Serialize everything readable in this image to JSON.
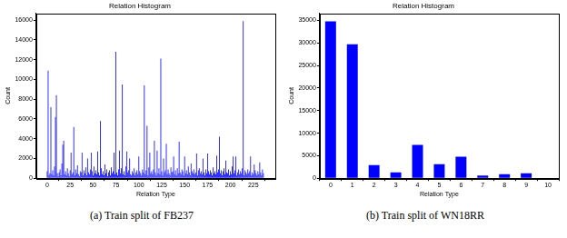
{
  "chart_data": [
    {
      "type": "bar",
      "title": "Relation Histogram",
      "caption": "(a)  Train split of FB237",
      "x_label": "Relation Type",
      "y_label": "Count",
      "color": "#0000ff",
      "grid": false,
      "x": [
        0,
        1,
        2,
        3,
        4,
        5,
        6,
        7,
        8,
        9,
        10,
        11,
        12,
        13,
        14,
        15,
        16,
        17,
        18,
        19,
        20,
        21,
        22,
        23,
        24,
        25,
        26,
        27,
        28,
        29,
        30,
        31,
        32,
        33,
        34,
        35,
        36,
        37,
        38,
        39,
        40,
        41,
        42,
        43,
        44,
        45,
        46,
        47,
        48,
        49,
        50,
        51,
        52,
        53,
        54,
        55,
        56,
        57,
        58,
        59,
        60,
        61,
        62,
        63,
        64,
        65,
        66,
        67,
        68,
        69,
        70,
        71,
        72,
        73,
        74,
        75,
        76,
        77,
        78,
        79,
        80,
        81,
        82,
        83,
        84,
        85,
        86,
        87,
        88,
        89,
        90,
        91,
        92,
        93,
        94,
        95,
        96,
        97,
        98,
        99,
        100,
        101,
        102,
        103,
        104,
        105,
        106,
        107,
        108,
        109,
        110,
        111,
        112,
        113,
        114,
        115,
        116,
        117,
        118,
        119,
        120,
        121,
        122,
        123,
        124,
        125,
        126,
        127,
        128,
        129,
        130,
        131,
        132,
        133,
        134,
        135,
        136,
        137,
        138,
        139,
        140,
        141,
        142,
        143,
        144,
        145,
        146,
        147,
        148,
        149,
        150,
        151,
        152,
        153,
        154,
        155,
        156,
        157,
        158,
        159,
        160,
        161,
        162,
        163,
        164,
        165,
        166,
        167,
        168,
        169,
        170,
        171,
        172,
        173,
        174,
        175,
        176,
        177,
        178,
        179,
        180,
        181,
        182,
        183,
        184,
        185,
        186,
        187,
        188,
        189,
        190,
        191,
        192,
        193,
        194,
        195,
        196,
        197,
        198,
        199,
        200,
        201,
        202,
        203,
        204,
        205,
        206,
        207,
        208,
        209,
        210,
        211,
        212,
        213,
        214,
        215,
        216,
        217,
        218,
        219,
        220,
        221,
        222,
        223,
        224,
        225,
        226,
        227,
        228,
        229,
        230,
        231,
        232,
        233,
        234,
        235,
        236
      ],
      "values": [
        700,
        10900,
        300,
        500,
        7200,
        400,
        800,
        300,
        1200,
        6200,
        8400,
        500,
        200,
        600,
        900,
        300,
        1500,
        3400,
        3800,
        400,
        700,
        300,
        1000,
        500,
        200,
        800,
        2600,
        400,
        600,
        5200,
        300,
        900,
        500,
        1300,
        400,
        200,
        700,
        600,
        2600,
        300,
        800,
        500,
        1100,
        300,
        2000,
        600,
        400,
        900,
        2600,
        700,
        300,
        1200,
        500,
        800,
        400,
        2700,
        600,
        300,
        5800,
        1000,
        400,
        700,
        300,
        1400,
        500,
        900,
        200,
        600,
        800,
        300,
        1100,
        500,
        700,
        2600,
        400,
        12800,
        600,
        300,
        900,
        2800,
        500,
        1000,
        9500,
        400,
        700,
        300,
        1200,
        2700,
        600,
        800,
        2000,
        400,
        300,
        700,
        500,
        1000,
        300,
        600,
        800,
        400,
        2200,
        700,
        500,
        300,
        900,
        600,
        9400,
        400,
        800,
        5300,
        300,
        1100,
        2600,
        500,
        700,
        400,
        900,
        3800,
        600,
        300,
        2800,
        500,
        1000,
        400,
        12100,
        700,
        300,
        2000,
        600,
        800,
        3500,
        400,
        900,
        500,
        300,
        1100,
        600,
        700,
        2200,
        400,
        800,
        300,
        1000,
        500,
        3700,
        600,
        400,
        900,
        700,
        300,
        2200,
        500,
        800,
        400,
        1200,
        600,
        300,
        1500,
        700,
        500,
        900,
        400,
        600,
        2500,
        300,
        800,
        1000,
        500,
        700,
        400,
        2000,
        600,
        300,
        900,
        500,
        2500,
        700,
        400,
        800,
        600,
        300,
        1100,
        500,
        700,
        400,
        2300,
        600,
        900,
        4200,
        500,
        800,
        300,
        700,
        1000,
        400,
        1800,
        600,
        500,
        900,
        300,
        700,
        400,
        1200,
        2200,
        500,
        800,
        2200,
        300,
        600,
        900,
        400,
        700,
        500,
        1000,
        15900,
        300,
        800,
        600,
        400,
        900,
        500,
        700,
        2200,
        300,
        600,
        400,
        1400,
        800,
        500,
        300,
        700,
        400,
        1600,
        600,
        300,
        900,
        500
      ],
      "xlim": [
        -12,
        249
      ],
      "xticks": [
        0,
        25,
        50,
        75,
        100,
        125,
        150,
        175,
        200,
        225
      ],
      "ylim": [
        0,
        16700
      ],
      "yticks": [
        0,
        2000,
        4000,
        6000,
        8000,
        10000,
        12000,
        14000,
        16000
      ]
    },
    {
      "type": "bar",
      "title": "Relation Histogram",
      "caption": "(b)  Train split of WN18RR",
      "x_label": "Relation Type",
      "y_label": "Count",
      "color": "#0000ff",
      "grid": false,
      "categories": [
        "0",
        "1",
        "2",
        "3",
        "4",
        "5",
        "6",
        "7",
        "8",
        "9",
        "10"
      ],
      "values": [
        34800,
        29700,
        2900,
        1300,
        7400,
        3100,
        4800,
        600,
        900,
        1100,
        80
      ],
      "ylim": [
        0,
        36600
      ],
      "yticks": [
        0,
        5000,
        10000,
        15000,
        20000,
        25000,
        30000,
        35000
      ]
    }
  ]
}
